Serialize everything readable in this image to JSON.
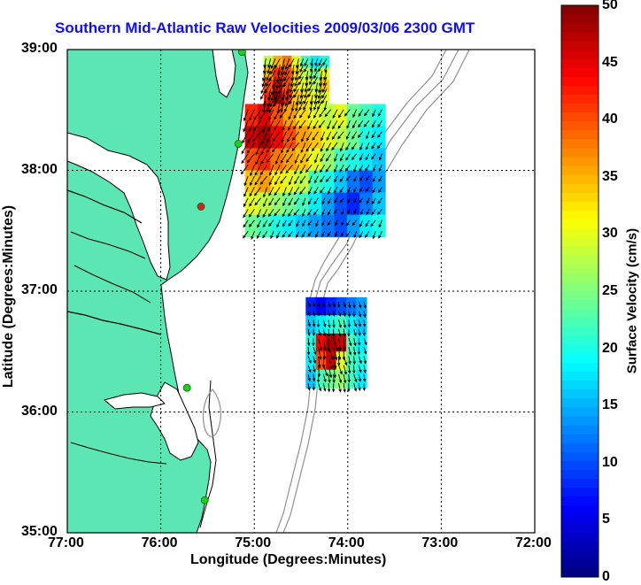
{
  "title": "Southern Mid-Atlantic Raw Velocities 2009/03/06 2300 GMT",
  "axes": {
    "xlabel": "Longitude (Degrees:Minutes)",
    "ylabel": "Latitude (Degrees:Minutes)",
    "xticks": [
      "77:00",
      "76:00",
      "75:00",
      "74:00",
      "73:00",
      "72:00"
    ],
    "yticks": [
      "39:00",
      "38:00",
      "37:00",
      "36:00",
      "35:00"
    ],
    "xlim": [
      -77,
      -72
    ],
    "ylim": [
      35,
      39
    ],
    "grid": "dotted"
  },
  "colorbar": {
    "label": "Surface Velocity (cm/s)",
    "ticks": [
      "50",
      "45",
      "40",
      "35",
      "30",
      "25",
      "20",
      "15",
      "10",
      "5",
      "0"
    ],
    "range": [
      0,
      50
    ],
    "colormap": "jet"
  },
  "colors": {
    "land": "#5ce6b4",
    "ocean": "#ffffff",
    "coast_outline": "#000000",
    "bathymetry": "#909090",
    "title": "#1010e6",
    "station_marker": "#22cc22",
    "station_marker_alt": "#dd2222"
  },
  "chart_data": {
    "type": "heatmap",
    "title": "Southern Mid-Atlantic Raw Velocities 2009/03/06 2300 GMT",
    "xlabel": "Longitude (Degrees:Minutes)",
    "ylabel": "Latitude (Degrees:Minutes)",
    "xlim": [
      -77,
      -72
    ],
    "ylim": [
      35,
      39
    ],
    "value_label": "Surface Velocity (cm/s)",
    "value_range": [
      0,
      50
    ],
    "stations": [
      {
        "lon": -75.13,
        "lat": 38.98,
        "color": "green"
      },
      {
        "lon": -75.17,
        "lat": 38.22,
        "color": "green"
      },
      {
        "lon": -75.57,
        "lat": 37.7,
        "color": "red"
      },
      {
        "lon": -75.72,
        "lat": 36.2,
        "color": "green"
      },
      {
        "lon": -75.53,
        "lat": 35.27,
        "color": "green"
      }
    ],
    "regions": [
      {
        "name": "north",
        "lon_range": [
          -74.9,
          -74.2
        ],
        "lat_range": [
          38.55,
          38.95
        ],
        "dir_deg": 200,
        "speeds": [
          [
            28,
            35,
            38,
            30,
            22,
            18,
            20
          ],
          [
            35,
            42,
            40,
            33,
            28,
            24,
            30
          ],
          [
            40,
            45,
            40,
            32,
            30,
            28,
            34
          ],
          [
            42,
            48,
            42,
            34,
            32,
            30,
            30
          ]
        ]
      },
      {
        "name": "central",
        "lon_range": [
          -75.1,
          -73.6
        ],
        "lat_range": [
          37.45,
          38.55
        ],
        "dir_deg": 210,
        "speeds": [
          [
            42,
            45,
            40,
            36,
            33,
            30,
            28,
            30,
            24,
            22,
            20
          ],
          [
            46,
            48,
            44,
            40,
            36,
            34,
            30,
            28,
            24,
            20,
            18
          ],
          [
            40,
            42,
            38,
            36,
            34,
            30,
            26,
            22,
            20,
            18,
            16
          ],
          [
            34,
            36,
            32,
            30,
            28,
            22,
            20,
            16,
            12,
            10,
            14
          ],
          [
            30,
            28,
            26,
            24,
            22,
            18,
            14,
            10,
            8,
            12,
            16
          ],
          [
            24,
            22,
            20,
            18,
            16,
            14,
            12,
            10,
            14,
            18,
            20
          ]
        ]
      },
      {
        "name": "south",
        "lon_range": [
          -74.45,
          -73.8
        ],
        "lat_range": [
          36.2,
          36.95
        ],
        "dir_deg": 170,
        "speeds": [
          [
            8,
            6,
            8,
            10,
            12,
            14
          ],
          [
            16,
            18,
            20,
            22,
            18,
            16
          ],
          [
            20,
            44,
            48,
            46,
            22,
            18
          ],
          [
            18,
            40,
            46,
            30,
            22,
            20
          ],
          [
            16,
            22,
            24,
            26,
            22,
            18
          ]
        ]
      }
    ]
  }
}
